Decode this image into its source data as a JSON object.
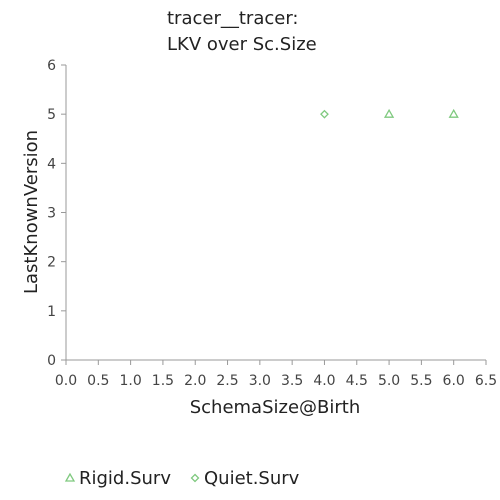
{
  "chart_data": {
    "type": "scatter",
    "title_lines": [
      "tracer__tracer:",
      "LKV over Sc.Size"
    ],
    "xlabel": "SchemaSize@Birth",
    "ylabel": "LastKnownVersion",
    "xlim": [
      0,
      6.5
    ],
    "ylim": [
      0,
      6
    ],
    "x_ticks": [
      "0.0",
      "0.5",
      "1.0",
      "1.5",
      "2.0",
      "2.5",
      "3.0",
      "3.5",
      "4.0",
      "4.5",
      "5.0",
      "5.5",
      "6.0",
      "6.5"
    ],
    "y_ticks": [
      "0",
      "1",
      "2",
      "3",
      "4",
      "5",
      "6"
    ],
    "grid": false,
    "legend_position": "bottom-left",
    "series": [
      {
        "name": "Rigid.Surv",
        "marker": "triangle",
        "color": "#7fc97f",
        "points": [
          {
            "x": 5,
            "y": 5
          },
          {
            "x": 6,
            "y": 5
          }
        ]
      },
      {
        "name": "Quiet.Surv",
        "marker": "diamond",
        "color": "#7fc97f",
        "points": [
          {
            "x": 4,
            "y": 5
          }
        ]
      }
    ]
  }
}
